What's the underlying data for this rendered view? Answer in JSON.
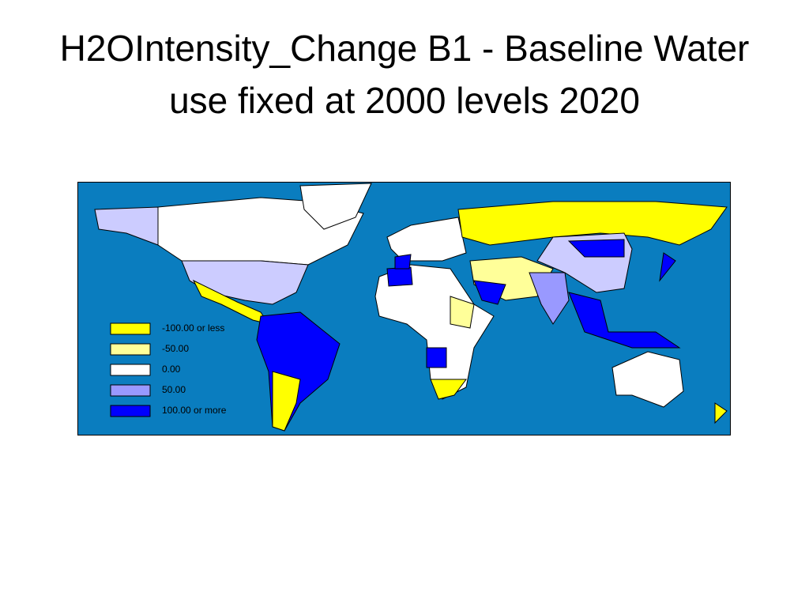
{
  "title": "H2OIntensity_Change B1 - Baseline Water use fixed at 2000 levels 2020",
  "legend": [
    {
      "label": "-100.00 or less",
      "color": "#ffff00"
    },
    {
      "label": "-50.00",
      "color": "#ffff99"
    },
    {
      "label": "0.00",
      "color": "#ffffff"
    },
    {
      "label": "50.00",
      "color": "#9999ff"
    },
    {
      "label": "100.00 or more",
      "color": "#0000ff"
    }
  ]
}
